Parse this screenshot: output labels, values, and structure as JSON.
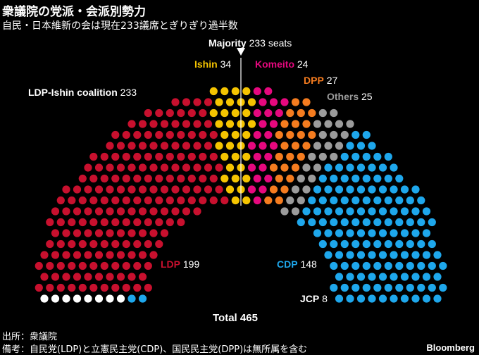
{
  "title": "衆議院の党派・会派別勢力",
  "subtitle": "自民・日本維新の会は現在233議席とぎりぎり過半数",
  "chart_data": {
    "type": "parliament",
    "total_seats": 465,
    "majority": {
      "name": "Majority",
      "value": "233 seats"
    },
    "coalition": {
      "name": "LDP-Ishin coalition",
      "value": 233
    },
    "total": {
      "label": "Total",
      "value": 465
    },
    "parties": [
      {
        "name": "LDP",
        "seats": 199,
        "color": "#c8102e"
      },
      {
        "name": "Ishin",
        "seats": 34,
        "color": "#f5c400"
      },
      {
        "name": "Komeito",
        "seats": 24,
        "color": "#e6087e"
      },
      {
        "name": "DPP",
        "seats": 27,
        "color": "#f57c1f"
      },
      {
        "name": "Others",
        "seats": 25,
        "color": "#9b9b9b"
      },
      {
        "name": "CDP",
        "seats": 148,
        "color": "#1ea7ec"
      },
      {
        "name": "JCP",
        "seats": 8,
        "color": "#ffffff"
      }
    ]
  },
  "footer": {
    "source": "出所：衆議院",
    "note": "備考：自民党(LDP)と立憲民主党(CDP)、国民民主党(DPP)は無所属を含む",
    "brand": "Bloomberg"
  }
}
